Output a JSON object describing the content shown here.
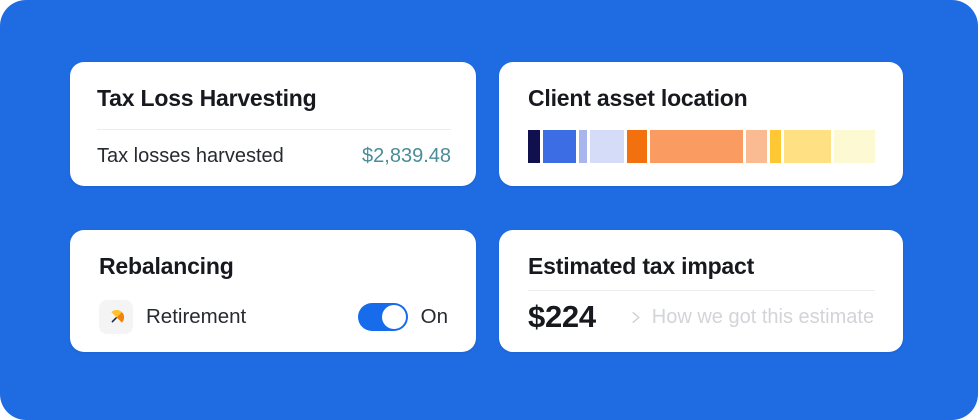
{
  "theme": {
    "background": "#1f6be2",
    "card_bg": "#ffffff",
    "title_color": "#17191f",
    "text_color": "#272a31",
    "value_teal": "#4a8d96",
    "toggle_on_blue": "#176ceb",
    "hint_gray": "#d2d4d8",
    "divider": "#ededed",
    "icon_tile_bg": "#f4f4f5"
  },
  "cards": {
    "tax_loss_harvesting": {
      "title": "Tax Loss Harvesting",
      "row": {
        "label": "Tax losses harvested",
        "value": "$2,839.48"
      }
    },
    "client_asset_location": {
      "title": "Client asset location"
    },
    "rebalancing": {
      "title": "Rebalancing",
      "account": {
        "label": "Retirement",
        "icon": "umbrella-icon"
      },
      "toggle": {
        "state_label": "On",
        "enabled": true
      }
    },
    "estimated_tax_impact": {
      "title": "Estimated tax impact",
      "amount": "$224",
      "link": {
        "label": "How we got this estimate",
        "icon": "chevron-right-icon"
      }
    }
  },
  "chart_data": {
    "type": "bar",
    "title": "Client asset location",
    "orientation": "horizontal_stacked",
    "unit": "percent_of_bar_width",
    "axes": false,
    "legend": false,
    "segments": [
      {
        "color": "#10104f",
        "value": 3.6
      },
      {
        "color": "#3d6de4",
        "value": 10.3
      },
      {
        "color": "#a9b6ee",
        "value": 2.7
      },
      {
        "color": "#d4dcf7",
        "value": 10.6
      },
      {
        "color": "#f3700e",
        "value": 6.1
      },
      {
        "color": "#fa9b61",
        "value": 29.2
      },
      {
        "color": "#fbbb92",
        "value": 6.4
      },
      {
        "color": "#ffc734",
        "value": 3.6
      },
      {
        "color": "#ffe083",
        "value": 14.6
      },
      {
        "color": "#fdf9d2",
        "value": 12.8
      }
    ]
  }
}
